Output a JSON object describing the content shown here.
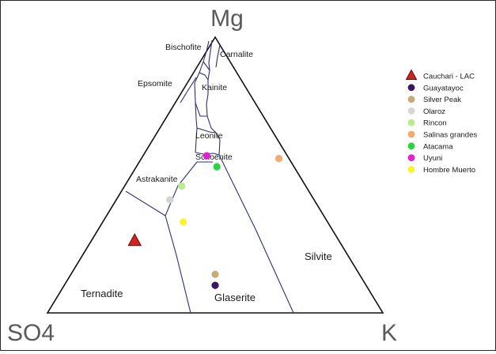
{
  "chart_data": {
    "type": "scatter",
    "subtype": "ternary",
    "vertices": {
      "top": "Mg",
      "left": "SO4",
      "right": "K"
    },
    "fields": [
      "Bischofite",
      "Carnalite",
      "Epsomite",
      "Kainite",
      "Leonite",
      "Schoenite",
      "Astrakanite",
      "Silvite",
      "Ternadite",
      "Glaserite"
    ],
    "legend_position": "right",
    "series": [
      {
        "name": "Cauchari - LAC",
        "marker": "triangle",
        "color": "#d3231e",
        "edge": "#5a0f0f",
        "points": [
          {
            "Mg": 0.26,
            "SO4": 0.61,
            "K": 0.13
          }
        ]
      },
      {
        "name": "Guayatayoc",
        "marker": "circle",
        "color": "#3b1660",
        "points": [
          {
            "Mg": 0.1,
            "SO4": 0.45,
            "K": 0.45
          }
        ]
      },
      {
        "name": "Silver Peak",
        "marker": "circle",
        "color": "#c8aa78",
        "points": [
          {
            "Mg": 0.14,
            "SO4": 0.43,
            "K": 0.43
          }
        ]
      },
      {
        "name": "Olaroz",
        "marker": "circle",
        "color": "#d4d4d4",
        "points": [
          {
            "Mg": 0.41,
            "SO4": 0.43,
            "K": 0.16
          }
        ]
      },
      {
        "name": "Rincon",
        "marker": "circle",
        "color": "#b9ec8c",
        "points": [
          {
            "Mg": 0.46,
            "SO4": 0.37,
            "K": 0.17
          }
        ]
      },
      {
        "name": "Salinas grandes",
        "marker": "circle",
        "color": "#f0ab74",
        "points": [
          {
            "Mg": 0.56,
            "SO4": 0.03,
            "K": 0.41
          }
        ]
      },
      {
        "name": "Atacama",
        "marker": "circle",
        "color": "#2ad43c",
        "points": [
          {
            "Mg": 0.53,
            "SO4": 0.23,
            "K": 0.24
          }
        ]
      },
      {
        "name": "Uyuni",
        "marker": "circle",
        "color": "#e420d3",
        "points": [
          {
            "Mg": 0.57,
            "SO4": 0.24,
            "K": 0.19
          }
        ]
      },
      {
        "name": "Hombre Muerto",
        "marker": "circle",
        "color": "#fff22a",
        "points": [
          {
            "Mg": 0.33,
            "SO4": 0.43,
            "K": 0.24
          }
        ]
      }
    ]
  }
}
